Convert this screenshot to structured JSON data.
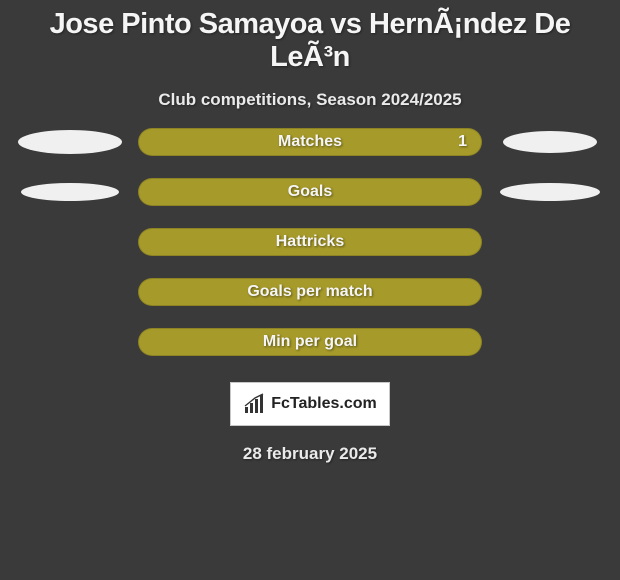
{
  "background_color": "#3a3a3a",
  "title": "Jose Pinto Samayoa vs HernÃ¡ndez De LeÃ³n",
  "title_fontsize": 29,
  "title_color": "#f5f5f5",
  "subtitle": "Club competitions, Season 2024/2025",
  "subtitle_fontsize": 17,
  "subtitle_color": "#eaeaea",
  "rows": [
    {
      "label": "Matches",
      "value_right": "1",
      "pill_color": "#a69a2a",
      "left_ellipse": {
        "visible": true,
        "width": 104,
        "height": 24,
        "color": "#f0f0f0"
      },
      "right_ellipse": {
        "visible": true,
        "width": 94,
        "height": 22,
        "color": "#f0f0f0"
      }
    },
    {
      "label": "Goals",
      "value_right": "",
      "pill_color": "#a69a2a",
      "left_ellipse": {
        "visible": true,
        "width": 98,
        "height": 18,
        "color": "#f0f0f0"
      },
      "right_ellipse": {
        "visible": true,
        "width": 100,
        "height": 18,
        "color": "#f0f0f0"
      }
    },
    {
      "label": "Hattricks",
      "value_right": "",
      "pill_color": "#a69a2a",
      "left_ellipse": {
        "visible": false
      },
      "right_ellipse": {
        "visible": false
      }
    },
    {
      "label": "Goals per match",
      "value_right": "",
      "pill_color": "#a69a2a",
      "left_ellipse": {
        "visible": false
      },
      "right_ellipse": {
        "visible": false
      }
    },
    {
      "label": "Min per goal",
      "value_right": "",
      "pill_color": "#a69a2a",
      "left_ellipse": {
        "visible": false
      },
      "right_ellipse": {
        "visible": false
      }
    }
  ],
  "logo": {
    "text": "FcTables.com",
    "text_color": "#222222",
    "box_bg": "#ffffff",
    "box_border": "#c8c8c8",
    "icon_color": "#333333"
  },
  "date": "28 february 2025",
  "date_color": "#eaeaea",
  "date_fontsize": 17
}
